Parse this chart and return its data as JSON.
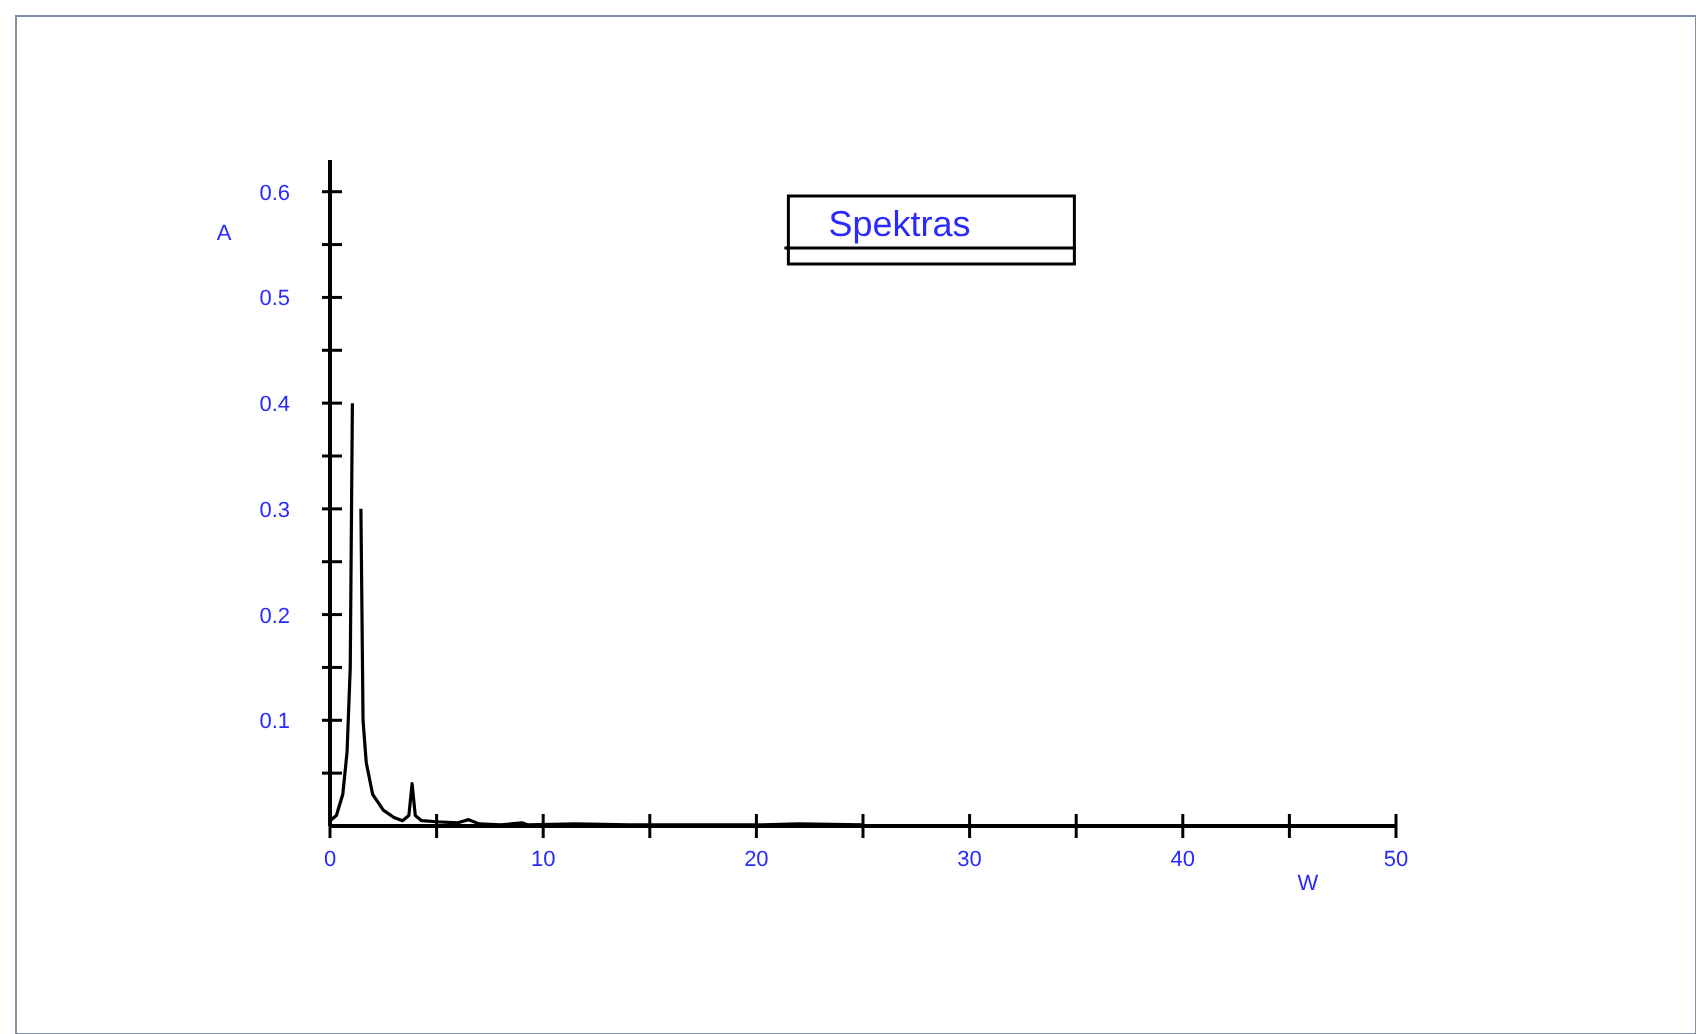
{
  "chart_data": {
    "type": "line",
    "xlabel": "W",
    "ylabel": "A",
    "legend": "top",
    "xlim": [
      0,
      50
    ],
    "ylim": [
      0,
      0.63
    ],
    "xticks": [
      0,
      {
        "value": 5,
        "label": null
      },
      10,
      {
        "value": 15,
        "label": null
      },
      20,
      {
        "value": 25,
        "label": null
      },
      30,
      {
        "value": 35,
        "label": null
      },
      40,
      {
        "value": 45,
        "label": null
      },
      50
    ],
    "yticks": [
      {
        "value": 0.05,
        "label": null
      },
      0.1,
      {
        "value": 0.15,
        "label": null
      },
      0.2,
      {
        "value": 0.25,
        "label": null
      },
      0.3,
      {
        "value": 0.35,
        "label": null
      },
      0.4,
      {
        "value": 0.45,
        "label": null
      },
      0.5,
      {
        "value": 0.55,
        "label": null
      },
      0.6
    ],
    "grid": false,
    "series": [
      {
        "name": "Spektras",
        "color": "#000000",
        "x": [
          0,
          0.3,
          0.6,
          0.8,
          0.95,
          1.05,
          1.15,
          1.35,
          1.45,
          1.55,
          1.7,
          2,
          2.5,
          3,
          3.4,
          3.7,
          3.85,
          4,
          4.3,
          5,
          6,
          6.5,
          7,
          8,
          9,
          9.3,
          11.5,
          14,
          20,
          22,
          25
        ],
        "values": [
          0.005,
          0.01,
          0.03,
          0.07,
          0.15,
          0.4,
          null,
          null,
          0.3,
          0.1,
          0.06,
          0.03,
          0.015,
          0.008,
          0.005,
          0.01,
          0.04,
          0.01,
          0.005,
          0.004,
          0.003,
          0.006,
          0.002,
          0.001,
          0.003,
          0.001,
          0.002,
          0.001,
          0.001,
          0.002,
          0.001
        ]
      }
    ]
  }
}
